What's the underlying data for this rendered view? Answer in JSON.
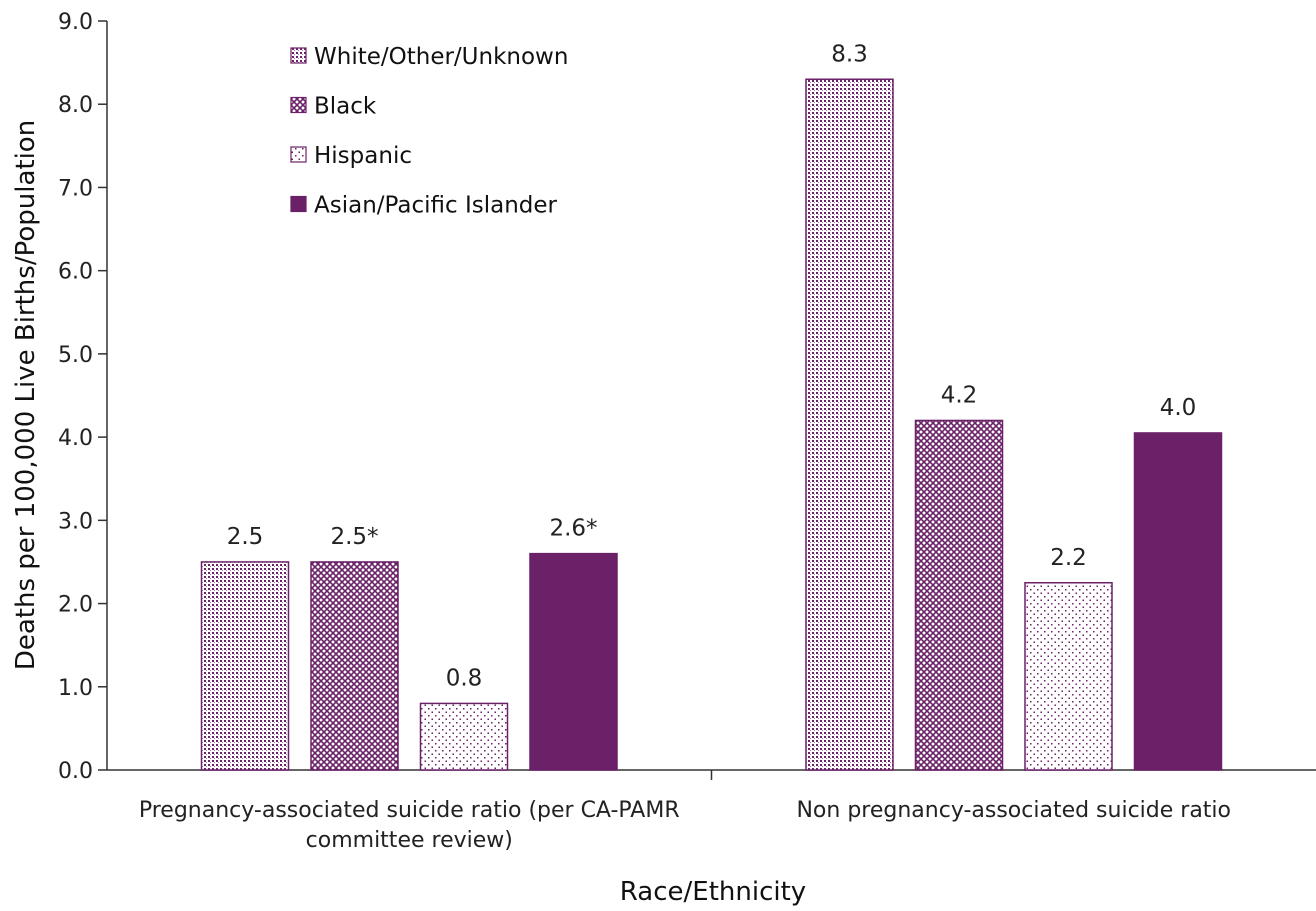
{
  "chart_data": {
    "type": "bar",
    "categories": [
      [
        "Pregnancy-associated suicide ratio (per CA-PAMR",
        "committee review)"
      ],
      [
        "Non pregnancy-associated suicide ratio"
      ]
    ],
    "series": [
      {
        "name": "White/Other/Unknown",
        "values": [
          2.5,
          8.3
        ],
        "labels": [
          "2.5",
          "8.3"
        ],
        "color": "#6b2168",
        "pattern": "fine-dots"
      },
      {
        "name": "Black",
        "values": [
          2.5,
          4.2
        ],
        "labels": [
          "2.5*",
          "4.2"
        ],
        "color": "#6b2168",
        "pattern": "crosshatch"
      },
      {
        "name": "Hispanic",
        "values": [
          0.8,
          2.25
        ],
        "labels": [
          "0.8",
          "2.2"
        ],
        "color": "#6b2168",
        "pattern": "sparse-dots"
      },
      {
        "name": "Asian/Pacific Islander",
        "values": [
          2.6,
          4.05
        ],
        "labels": [
          "2.6*",
          "4.0"
        ],
        "color": "#6b2168",
        "pattern": "solid"
      }
    ],
    "title": "",
    "xlabel": "Race/Ethnicity",
    "ylabel": "Deaths per 100,000 Live Births/Population",
    "ylim": [
      0,
      9
    ],
    "yticks": [
      "0.0",
      "1.0",
      "2.0",
      "3.0",
      "4.0",
      "5.0",
      "6.0",
      "7.0",
      "8.0",
      "9.0"
    ],
    "grid": false,
    "legend_position": "top-left"
  }
}
